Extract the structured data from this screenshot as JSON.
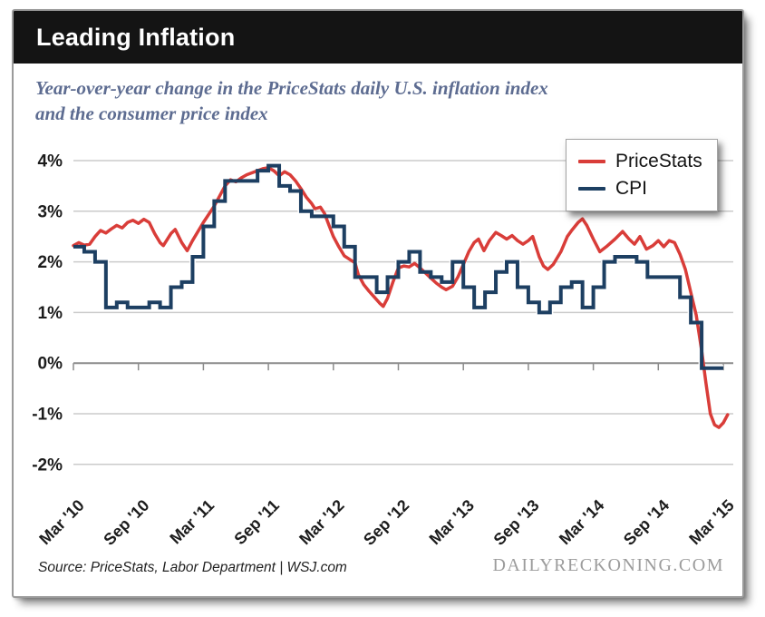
{
  "header": {
    "title": "Leading Inflation"
  },
  "subtitle": {
    "line1": "Year-over-year change in the PriceStats daily U.S. inflation index",
    "line2": "and the consumer price index",
    "full": "Year-over-year change in the PriceStats daily U.S. inflation index and the consumer price index"
  },
  "legend": {
    "items": [
      {
        "label": "PriceStats",
        "color": "#d93d39"
      },
      {
        "label": "CPI",
        "color": "#1d3f62"
      }
    ]
  },
  "footer": {
    "source": "Source: PriceStats, Labor Department | WSJ.com",
    "watermark": "DAILYRECKONING.COM"
  },
  "colors": {
    "header_bg": "#141414",
    "subtitle_text": "#5d6c91",
    "pricestats_line": "#d93d39",
    "cpi_line": "#1d3f62",
    "gridline": "#cbcbcb",
    "zero_axis": "#8c8c8c",
    "axis_label": "#1c1c1c",
    "watermark_text": "#9c9c9c"
  },
  "chart_data": {
    "type": "line",
    "title": "Leading Inflation",
    "xlabel": "",
    "ylabel": "",
    "ylim": [
      -2,
      4
    ],
    "grid": "horizontal",
    "legend_position": "top-right",
    "x_unit": "months since Mar 2010",
    "xtick_labels": [
      "Mar '10",
      "Sep '10",
      "Mar '11",
      "Sep '11",
      "Mar '12",
      "Sep '12",
      "Mar '13",
      "Sep '13",
      "Mar '14",
      "Sep '14",
      "Mar '15"
    ],
    "xtick_month_index": [
      0,
      6,
      12,
      18,
      24,
      30,
      36,
      42,
      48,
      54,
      60
    ],
    "ytick_labels": [
      "4%",
      "3%",
      "2%",
      "1%",
      "0%",
      "-1%",
      "-2%"
    ],
    "ytick_values": [
      4,
      3,
      2,
      1,
      0,
      -1,
      -2
    ],
    "series": [
      {
        "name": "PriceStats",
        "style": "line",
        "color": "#d93d39",
        "points": [
          [
            0,
            2.32
          ],
          [
            0.5,
            2.38
          ],
          [
            1,
            2.33
          ],
          [
            1.5,
            2.35
          ],
          [
            2,
            2.5
          ],
          [
            2.5,
            2.62
          ],
          [
            3,
            2.57
          ],
          [
            3.5,
            2.65
          ],
          [
            4,
            2.72
          ],
          [
            4.5,
            2.67
          ],
          [
            5,
            2.78
          ],
          [
            5.5,
            2.82
          ],
          [
            6,
            2.76
          ],
          [
            6.5,
            2.84
          ],
          [
            7,
            2.78
          ],
          [
            7.5,
            2.56
          ],
          [
            8,
            2.38
          ],
          [
            8.3,
            2.32
          ],
          [
            9,
            2.56
          ],
          [
            9.4,
            2.64
          ],
          [
            10,
            2.38
          ],
          [
            10.5,
            2.22
          ],
          [
            11,
            2.42
          ],
          [
            11.5,
            2.6
          ],
          [
            12,
            2.78
          ],
          [
            13,
            3.1
          ],
          [
            13.5,
            3.3
          ],
          [
            14,
            3.5
          ],
          [
            14.5,
            3.62
          ],
          [
            15,
            3.58
          ],
          [
            15.5,
            3.66
          ],
          [
            16,
            3.72
          ],
          [
            16.5,
            3.76
          ],
          [
            17,
            3.8
          ],
          [
            17.5,
            3.84
          ],
          [
            18,
            3.86
          ],
          [
            18.5,
            3.8
          ],
          [
            19,
            3.7
          ],
          [
            19.5,
            3.78
          ],
          [
            20,
            3.72
          ],
          [
            20.5,
            3.6
          ],
          [
            21,
            3.45
          ],
          [
            21.5,
            3.28
          ],
          [
            22,
            3.15
          ],
          [
            22.3,
            3.05
          ],
          [
            22.8,
            3.08
          ],
          [
            23.2,
            2.95
          ],
          [
            23.6,
            2.72
          ],
          [
            24,
            2.5
          ],
          [
            24.5,
            2.3
          ],
          [
            25,
            2.12
          ],
          [
            25.5,
            2.05
          ],
          [
            26,
            1.98
          ],
          [
            26.3,
            1.75
          ],
          [
            26.8,
            1.55
          ],
          [
            27.3,
            1.42
          ],
          [
            27.8,
            1.3
          ],
          [
            28.3,
            1.18
          ],
          [
            28.6,
            1.12
          ],
          [
            29,
            1.28
          ],
          [
            29.5,
            1.6
          ],
          [
            30,
            1.88
          ],
          [
            30.5,
            1.92
          ],
          [
            31,
            1.9
          ],
          [
            31.5,
            1.97
          ],
          [
            32,
            1.88
          ],
          [
            32.5,
            1.78
          ],
          [
            33,
            1.68
          ],
          [
            33.5,
            1.58
          ],
          [
            34,
            1.5
          ],
          [
            34.4,
            1.45
          ],
          [
            35,
            1.52
          ],
          [
            35.5,
            1.7
          ],
          [
            36,
            1.95
          ],
          [
            36.5,
            2.2
          ],
          [
            37,
            2.38
          ],
          [
            37.4,
            2.45
          ],
          [
            37.9,
            2.22
          ],
          [
            38.4,
            2.42
          ],
          [
            39,
            2.58
          ],
          [
            39.5,
            2.52
          ],
          [
            40,
            2.45
          ],
          [
            40.5,
            2.52
          ],
          [
            41,
            2.42
          ],
          [
            41.5,
            2.35
          ],
          [
            42,
            2.42
          ],
          [
            42.4,
            2.5
          ],
          [
            43,
            2.1
          ],
          [
            43.4,
            1.92
          ],
          [
            43.8,
            1.85
          ],
          [
            44.3,
            1.95
          ],
          [
            45,
            2.2
          ],
          [
            45.6,
            2.5
          ],
          [
            46,
            2.62
          ],
          [
            46.6,
            2.78
          ],
          [
            47,
            2.85
          ],
          [
            47.4,
            2.72
          ],
          [
            48,
            2.45
          ],
          [
            48.6,
            2.2
          ],
          [
            49.2,
            2.3
          ],
          [
            50,
            2.45
          ],
          [
            50.7,
            2.6
          ],
          [
            51.3,
            2.45
          ],
          [
            51.8,
            2.35
          ],
          [
            52.3,
            2.5
          ],
          [
            52.9,
            2.25
          ],
          [
            53.5,
            2.32
          ],
          [
            54,
            2.42
          ],
          [
            54.5,
            2.3
          ],
          [
            55,
            2.42
          ],
          [
            55.5,
            2.38
          ],
          [
            56,
            2.15
          ],
          [
            56.5,
            1.85
          ],
          [
            57,
            1.4
          ],
          [
            57.5,
            0.95
          ],
          [
            58,
            0.25
          ],
          [
            58.4,
            -0.4
          ],
          [
            58.8,
            -1.0
          ],
          [
            59.2,
            -1.22
          ],
          [
            59.6,
            -1.27
          ],
          [
            60,
            -1.18
          ],
          [
            60.4,
            -1.02
          ]
        ]
      },
      {
        "name": "CPI",
        "style": "step",
        "color": "#1d3f62",
        "start_month": "Mar 2010",
        "monthly_values": [
          2.3,
          2.2,
          2.0,
          1.1,
          1.2,
          1.1,
          1.1,
          1.2,
          1.1,
          1.5,
          1.6,
          2.1,
          2.7,
          3.2,
          3.6,
          3.6,
          3.6,
          3.8,
          3.9,
          3.5,
          3.4,
          3.0,
          2.9,
          2.9,
          2.7,
          2.3,
          1.7,
          1.7,
          1.4,
          1.7,
          2.0,
          2.2,
          1.8,
          1.7,
          1.6,
          2.0,
          1.5,
          1.1,
          1.4,
          1.8,
          2.0,
          1.5,
          1.2,
          1.0,
          1.2,
          1.5,
          1.6,
          1.1,
          1.5,
          2.0,
          2.1,
          2.1,
          2.0,
          1.7,
          1.7,
          1.7,
          1.3,
          0.8,
          -0.1,
          -0.1
        ]
      }
    ]
  }
}
